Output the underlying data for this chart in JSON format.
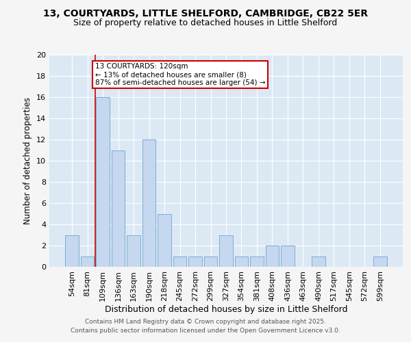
{
  "title1": "13, COURTYARDS, LITTLE SHELFORD, CAMBRIDGE, CB22 5ER",
  "title2": "Size of property relative to detached houses in Little Shelford",
  "xlabel": "Distribution of detached houses by size in Little Shelford",
  "ylabel": "Number of detached properties",
  "categories": [
    "54sqm",
    "81sqm",
    "109sqm",
    "136sqm",
    "163sqm",
    "190sqm",
    "218sqm",
    "245sqm",
    "272sqm",
    "299sqm",
    "327sqm",
    "354sqm",
    "381sqm",
    "408sqm",
    "436sqm",
    "463sqm",
    "490sqm",
    "517sqm",
    "545sqm",
    "572sqm",
    "599sqm"
  ],
  "values": [
    3,
    1,
    16,
    11,
    3,
    12,
    5,
    1,
    1,
    1,
    3,
    1,
    1,
    2,
    2,
    0,
    1,
    0,
    0,
    0,
    1
  ],
  "bar_color": "#c5d8ef",
  "bar_edge_color": "#7aadd4",
  "annotation_box_text": "13 COURTYARDS: 120sqm\n← 13% of detached houses are smaller (8)\n87% of semi-detached houses are larger (54) →",
  "annotation_box_color": "#ffffff",
  "annotation_box_edge_color": "#cc0000",
  "red_line_x": 2.5,
  "ylim": [
    0,
    20
  ],
  "yticks": [
    0,
    2,
    4,
    6,
    8,
    10,
    12,
    14,
    16,
    18,
    20
  ],
  "background_color": "#dce9f5",
  "grid_color": "#ffffff",
  "footer_line1": "Contains HM Land Registry data © Crown copyright and database right 2025.",
  "footer_line2": "Contains public sector information licensed under the Open Government Licence v3.0.",
  "title1_fontsize": 10,
  "title2_fontsize": 9,
  "xlabel_fontsize": 9,
  "ylabel_fontsize": 8.5,
  "tick_fontsize": 8,
  "footer_fontsize": 6.5,
  "ann_fontsize": 7.5
}
